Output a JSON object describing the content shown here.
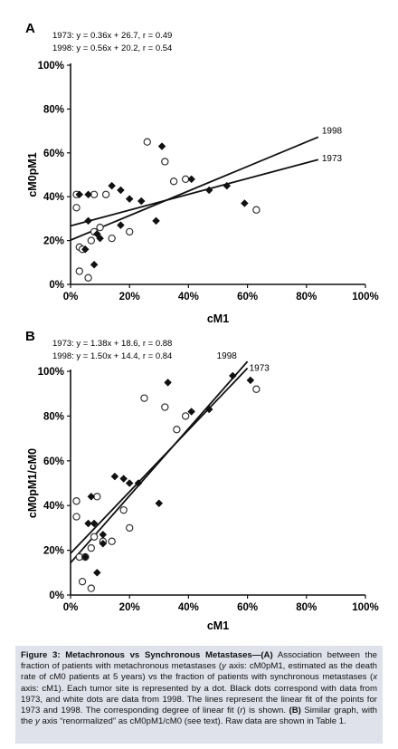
{
  "chart_data": [
    {
      "panel_label": "A",
      "type": "scatter",
      "equation_1973": "1973: y = 0.36x + 26.7, r = 0.49",
      "equation_1998": "1998: y = 0.56x + 20.2, r = 0.54",
      "xlabel": "cM1",
      "ylabel": "cM0pM1",
      "xlim": [
        0,
        100
      ],
      "ylim": [
        0,
        100
      ],
      "x_ticks": [
        "0%",
        "20%",
        "40%",
        "60%",
        "80%",
        "100%"
      ],
      "y_ticks": [
        "0%",
        "20%",
        "40%",
        "60%",
        "80%",
        "100%"
      ],
      "grid": false,
      "series": [
        {
          "name": "1973",
          "marker": "filled",
          "points": [
            [
              3,
              41
            ],
            [
              5,
              16
            ],
            [
              6,
              29
            ],
            [
              6,
              41
            ],
            [
              8,
              9
            ],
            [
              9,
              23
            ],
            [
              10,
              21
            ],
            [
              14,
              45
            ],
            [
              17,
              43
            ],
            [
              17,
              27
            ],
            [
              20,
              39
            ],
            [
              24,
              38
            ],
            [
              29,
              29
            ],
            [
              31,
              63
            ],
            [
              41,
              48
            ],
            [
              47,
              43
            ],
            [
              53,
              45
            ],
            [
              59,
              37
            ]
          ],
          "fit": {
            "slope": 0.36,
            "intercept": 26.7
          }
        },
        {
          "name": "1998",
          "marker": "hollow",
          "points": [
            [
              2,
              41
            ],
            [
              2,
              35
            ],
            [
              3,
              17
            ],
            [
              3,
              6
            ],
            [
              4,
              16
            ],
            [
              6,
              3
            ],
            [
              7,
              20
            ],
            [
              8,
              24
            ],
            [
              8,
              41
            ],
            [
              10,
              26
            ],
            [
              12,
              41
            ],
            [
              14,
              21
            ],
            [
              20,
              24
            ],
            [
              26,
              65
            ],
            [
              32,
              56
            ],
            [
              35,
              47
            ],
            [
              39,
              48
            ],
            [
              63,
              34
            ]
          ],
          "fit": {
            "slope": 0.56,
            "intercept": 20.2
          }
        }
      ],
      "line_labels": [
        "1998",
        "1973"
      ]
    },
    {
      "panel_label": "B",
      "type": "scatter",
      "equation_1973": "1973: y = 1.38x + 18.6, r = 0.88",
      "equation_1998": "1998: y = 1.50x + 14.4, r = 0.84",
      "xlabel": "cM1",
      "ylabel": "cM0pM1/cM0",
      "xlim": [
        0,
        100
      ],
      "ylim": [
        0,
        100
      ],
      "x_ticks": [
        "0%",
        "20%",
        "40%",
        "60%",
        "80%",
        "100%"
      ],
      "y_ticks": [
        "0%",
        "20%",
        "40%",
        "60%",
        "80%",
        "100%"
      ],
      "grid": false,
      "series": [
        {
          "name": "1973",
          "marker": "filled",
          "points": [
            [
              5,
              17
            ],
            [
              6,
              32
            ],
            [
              7,
              44
            ],
            [
              8,
              32
            ],
            [
              9,
              10
            ],
            [
              11,
              23
            ],
            [
              11,
              27
            ],
            [
              15,
              53
            ],
            [
              18,
              52
            ],
            [
              20,
              50
            ],
            [
              23,
              50
            ],
            [
              30,
              41
            ],
            [
              33,
              95
            ],
            [
              41,
              82
            ],
            [
              47,
              83
            ],
            [
              55,
              98
            ],
            [
              61,
              96
            ]
          ],
          "fit": {
            "slope": 1.38,
            "intercept": 18.6
          }
        },
        {
          "name": "1998",
          "marker": "hollow",
          "points": [
            [
              2,
              42
            ],
            [
              2,
              35
            ],
            [
              3,
              17
            ],
            [
              4,
              6
            ],
            [
              5,
              17
            ],
            [
              7,
              3
            ],
            [
              7,
              21
            ],
            [
              8,
              26
            ],
            [
              9,
              44
            ],
            [
              11,
              24
            ],
            [
              14,
              24
            ],
            [
              18,
              38
            ],
            [
              20,
              30
            ],
            [
              25,
              88
            ],
            [
              32,
              84
            ],
            [
              36,
              74
            ],
            [
              39,
              80
            ],
            [
              63,
              92
            ]
          ],
          "fit": {
            "slope": 1.5,
            "intercept": 14.4
          }
        }
      ],
      "line_labels": [
        "1998",
        "1973"
      ]
    }
  ],
  "caption": {
    "title": "Figure 3: Metachronous vs Synchronous Metastases—",
    "part_a_label": "(A)",
    "part_a_text_1": " Association between the fraction of patients with metachronous metastases (",
    "y_letter": "y",
    "part_a_text_2": " axis: cM0pM1, estimated as the death rate of cM0 patients at 5 years) vs the fraction of patients with synchronous metastases (",
    "x_letter": "x",
    "part_a_text_3": " axis: cM1). Each tumor site is represented by a dot. Black dots correspond with data from 1973, and white dots are data from 1998. The lines represent the linear fit of the points for 1973 and 1998. The corresponding degree of linear fit (",
    "r_letter": "r",
    "part_a_text_4": ") is shown. ",
    "part_b_label": "(B)",
    "part_b_text_1": " Similar graph, with the ",
    "y_letter_2": "y",
    "part_b_text_2": " axis “renormalized” as cM0pM1/cM0 (see text). Raw data are shown in Table 1."
  }
}
